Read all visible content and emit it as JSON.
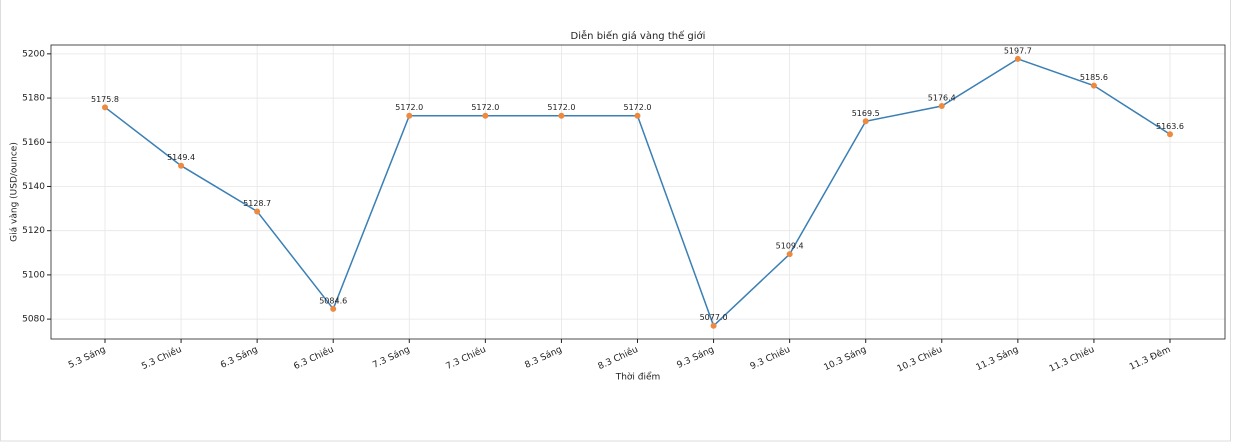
{
  "chart_data": {
    "type": "line",
    "title": "Diễn biến giá vàng thế giới",
    "x_label": "Thời điểm",
    "y_label": "Giá vàng (USD/ounce)",
    "categories": [
      "5.3 Sáng",
      "5.3 Chiều",
      "6.3 Sáng",
      "6.3 Chiều",
      "7.3 Sáng",
      "7.3 Chiều",
      "8.3 Sáng",
      "8.3 Chiều",
      "9.3 Sáng",
      "9.3 Chiều",
      "10.3 Sáng",
      "10.3 Chiều",
      "11.3 Sáng",
      "11.3 Chiều",
      "11.3 Đêm"
    ],
    "values": [
      5175.8,
      5149.4,
      5128.7,
      5084.6,
      5172.0,
      5172.0,
      5172.0,
      5172.0,
      5077.0,
      5109.4,
      5169.5,
      5176.4,
      5197.7,
      5185.6,
      5163.6
    ],
    "value_labels": [
      "5175.8",
      "5149.4",
      "5128.7",
      "5084.6",
      "5172.0",
      "5172.0",
      "5172.0",
      "5172.0",
      "5077.0",
      "5109.4",
      "5169.5",
      "5176.4",
      "5197.7",
      "5185.6",
      "5163.6"
    ],
    "color": "#3a7fb5",
    "marker_color": "#ed8a3f",
    "ylim": [
      5071,
      5204
    ],
    "yticks": [
      5080,
      5100,
      5120,
      5140,
      5160,
      5180,
      5200
    ],
    "grid": true
  }
}
